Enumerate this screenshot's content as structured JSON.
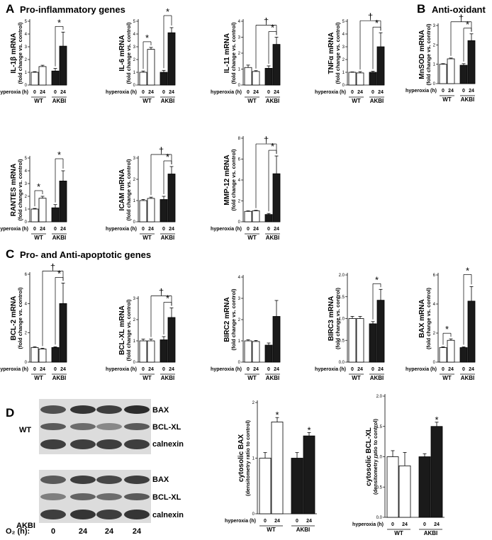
{
  "panels": {
    "A": {
      "letter": "A",
      "title": "Pro-inflammatory genes"
    },
    "B": {
      "letter": "B",
      "title": "Anti-oxidant"
    },
    "C": {
      "letter": "C",
      "title": "Pro- and Anti-apoptotic genes"
    },
    "D": {
      "letter": "D"
    }
  },
  "axis_text": {
    "condition_label": "hyperoxia (h)",
    "fold_label": "(fold change vs. control)",
    "densito_label": "(densitometry ratio to control)",
    "groups": [
      "WT",
      "AKBI"
    ],
    "hours": [
      "0",
      "24",
      "0",
      "24"
    ],
    "bar_colors": [
      "#ffffff",
      "#ffffff",
      "#1a1a1a",
      "#1a1a1a"
    ]
  },
  "western_blot": {
    "wt_label": "WT",
    "akbi_label": "AKBI",
    "bands": [
      "BAX",
      "BCL-XL",
      "calnexin"
    ],
    "o2_label": "O₂ (h):",
    "lanes": [
      "0",
      "24",
      "24",
      "24"
    ]
  },
  "chart_data": [
    {
      "type": "bar",
      "ylabel": "IL-1β mRNA",
      "categories": [
        "WT 0",
        "WT 24",
        "AKBI 0",
        "AKBI 24"
      ],
      "values": [
        1.0,
        1.45,
        1.1,
        3.05
      ],
      "errors": [
        0.05,
        0.1,
        0.2,
        1.1
      ],
      "ylim": [
        0,
        5
      ],
      "yticks": [
        "0",
        "1",
        "2",
        "3",
        "4",
        "5"
      ],
      "annotations": [
        {
          "symbol": "*",
          "between": [
            "AKBI 0",
            "AKBI 24"
          ]
        }
      ]
    },
    {
      "type": "bar",
      "ylabel": "IL-6 mRNA",
      "categories": [
        "WT 0",
        "WT 24",
        "AKBI 0",
        "AKBI 24"
      ],
      "values": [
        1.0,
        2.8,
        1.0,
        4.1
      ],
      "errors": [
        0.1,
        0.15,
        0.15,
        0.4
      ],
      "ylim": [
        0,
        5
      ],
      "yticks": [
        "0",
        "1",
        "2",
        "3",
        "4",
        "5"
      ],
      "annotations": [
        {
          "symbol": "*",
          "between": [
            "WT 0",
            "WT 24"
          ]
        },
        {
          "symbol": "*",
          "between": [
            "AKBI 0",
            "AKBI 24"
          ]
        }
      ]
    },
    {
      "type": "bar",
      "ylabel": "IL-11 mRNA",
      "categories": [
        "WT 0",
        "WT 24",
        "AKBI 0",
        "AKBI 24"
      ],
      "values": [
        1.1,
        0.85,
        1.05,
        2.55
      ],
      "errors": [
        0.15,
        0.05,
        0.15,
        0.45
      ],
      "ylim": [
        0,
        4
      ],
      "yticks": [
        "0",
        "1",
        "2",
        "3",
        "4"
      ],
      "annotations": [
        {
          "symbol": "*",
          "between": [
            "AKBI 0",
            "AKBI 24"
          ]
        },
        {
          "symbol": "†",
          "between": [
            "WT 24",
            "AKBI 24"
          ]
        }
      ]
    },
    {
      "type": "bar",
      "ylabel": "TNFα mRNA",
      "categories": [
        "WT 0",
        "WT 24",
        "AKBI 0",
        "AKBI 24"
      ],
      "values": [
        1.0,
        0.95,
        1.0,
        3.0
      ],
      "errors": [
        0.03,
        0.1,
        0.08,
        1.1
      ],
      "ylim": [
        0,
        5
      ],
      "yticks": [
        "0",
        "1",
        "2",
        "3",
        "4",
        "5"
      ],
      "annotations": [
        {
          "symbol": "*",
          "between": [
            "AKBI 0",
            "AKBI 24"
          ]
        },
        {
          "symbol": "†",
          "between": [
            "WT 24",
            "AKBI 24"
          ]
        }
      ]
    },
    {
      "type": "bar",
      "ylabel": "MnSOD mRNA",
      "categories": [
        "WT 0",
        "WT 24",
        "AKBI 0",
        "AKBI 24"
      ],
      "values": [
        1.0,
        1.28,
        0.95,
        2.22
      ],
      "errors": [
        0.03,
        0.04,
        0.08,
        0.35
      ],
      "ylim": [
        0,
        3
      ],
      "yticks": [
        "0",
        "1",
        "2",
        "3"
      ],
      "annotations": [
        {
          "symbol": "*",
          "between": [
            "AKBI 0",
            "AKBI 24"
          ]
        },
        {
          "symbol": "†",
          "between": [
            "WT 24",
            "AKBI 24"
          ]
        }
      ]
    },
    {
      "type": "bar",
      "ylabel": "RANTES mRNA",
      "categories": [
        "WT 0",
        "WT 24",
        "AKBI 0",
        "AKBI 24"
      ],
      "values": [
        1.0,
        1.85,
        1.1,
        3.2
      ],
      "errors": [
        0.05,
        0.15,
        0.25,
        0.8
      ],
      "ylim": [
        0,
        5
      ],
      "yticks": [
        "0",
        "1",
        "2",
        "3",
        "4",
        "5"
      ],
      "annotations": [
        {
          "symbol": "*",
          "between": [
            "WT 0",
            "WT 24"
          ]
        },
        {
          "symbol": "*",
          "between": [
            "AKBI 0",
            "AKBI 24"
          ]
        }
      ]
    },
    {
      "type": "bar",
      "ylabel": "ICAM mRNA",
      "categories": [
        "WT 0",
        "WT 24",
        "AKBI 0",
        "AKBI 24"
      ],
      "values": [
        1.0,
        1.1,
        1.05,
        2.25
      ],
      "errors": [
        0.05,
        0.06,
        0.15,
        0.35
      ],
      "ylim": [
        0,
        3
      ],
      "yticks": [
        "0",
        "1",
        "2",
        "3"
      ],
      "annotations": [
        {
          "symbol": "*",
          "between": [
            "AKBI 0",
            "AKBI 24"
          ]
        },
        {
          "symbol": "†",
          "between": [
            "WT 24",
            "AKBI 24"
          ]
        }
      ]
    },
    {
      "type": "bar",
      "ylabel": "MMP-12 mRNA",
      "categories": [
        "WT 0",
        "WT 24",
        "AKBI 0",
        "AKBI 24"
      ],
      "values": [
        1.0,
        1.05,
        0.7,
        4.6
      ],
      "errors": [
        0.05,
        0.05,
        0.1,
        1.7
      ],
      "ylim": [
        0,
        8
      ],
      "yticks": [
        "0",
        "2",
        "4",
        "6",
        "8"
      ],
      "annotations": [
        {
          "symbol": "*",
          "between": [
            "AKBI 0",
            "AKBI 24"
          ]
        },
        {
          "symbol": "†",
          "between": [
            "WT 24",
            "AKBI 24"
          ]
        }
      ]
    },
    {
      "type": "bar",
      "ylabel": "BCL-2 mRNA",
      "categories": [
        "WT 0",
        "WT 24",
        "AKBI 0",
        "AKBI 24"
      ],
      "values": [
        1.0,
        0.9,
        1.0,
        4.0
      ],
      "errors": [
        0.05,
        0.05,
        0.05,
        1.4
      ],
      "ylim": [
        0,
        6
      ],
      "yticks": [
        "0",
        "2",
        "4",
        "6"
      ],
      "annotations": [
        {
          "symbol": "*",
          "between": [
            "AKBI 0",
            "AKBI 24"
          ]
        },
        {
          "symbol": "†",
          "between": [
            "WT 24",
            "AKBI 24"
          ]
        }
      ]
    },
    {
      "type": "bar",
      "ylabel": "BCL-XL mRNA",
      "categories": [
        "WT 0",
        "WT 24",
        "AKBI 0",
        "AKBI 24"
      ],
      "values": [
        1.0,
        1.0,
        1.05,
        2.1
      ],
      "errors": [
        0.08,
        0.08,
        0.15,
        0.45
      ],
      "ylim": [
        0,
        3
      ],
      "yticks": [
        "0",
        "1",
        "2",
        "3"
      ],
      "annotations": [
        {
          "symbol": "*",
          "between": [
            "AKBI 0",
            "AKBI 24"
          ]
        },
        {
          "symbol": "†",
          "between": [
            "WT 24",
            "AKBI 24"
          ]
        }
      ]
    },
    {
      "type": "bar",
      "ylabel": "BIRC2 mRNA",
      "categories": [
        "WT 0",
        "WT 24",
        "AKBI 0",
        "AKBI 24"
      ],
      "values": [
        1.0,
        0.97,
        0.8,
        2.15
      ],
      "errors": [
        0.05,
        0.05,
        0.1,
        0.75
      ],
      "ylim": [
        0,
        4
      ],
      "yticks": [
        "0",
        "1",
        "2",
        "3",
        "4"
      ],
      "annotations": []
    },
    {
      "type": "bar",
      "ylabel": "BIRC3 mRNA",
      "categories": [
        "WT 0",
        "WT 24",
        "AKBI 0",
        "AKBI 24"
      ],
      "values": [
        1.0,
        1.0,
        0.88,
        1.42
      ],
      "errors": [
        0.05,
        0.05,
        0.05,
        0.25
      ],
      "ylim": [
        0,
        2
      ],
      "yticks": [
        "0.0",
        "0.5",
        "1.0",
        "1.5",
        "2.0"
      ],
      "annotations": [
        {
          "symbol": "*",
          "between": [
            "AKBI 0",
            "AKBI 24"
          ]
        }
      ]
    },
    {
      "type": "bar",
      "ylabel": "BAX mRNA",
      "categories": [
        "WT 0",
        "WT 24",
        "AKBI 0",
        "AKBI 24"
      ],
      "values": [
        1.0,
        1.5,
        1.0,
        4.2
      ],
      "errors": [
        0.05,
        0.1,
        0.05,
        1.0
      ],
      "ylim": [
        0,
        6
      ],
      "yticks": [
        "0",
        "2",
        "4",
        "6"
      ],
      "annotations": [
        {
          "symbol": "*",
          "between": [
            "WT 0",
            "WT 24"
          ]
        },
        {
          "symbol": "*",
          "between": [
            "AKBI 0",
            "AKBI 24"
          ]
        }
      ]
    },
    {
      "type": "bar",
      "ylabel": "cytosolic BAX",
      "categories": [
        "WT 0",
        "WT 24",
        "AKBI 0",
        "AKBI 24"
      ],
      "values": [
        1.0,
        1.65,
        1.0,
        1.4
      ],
      "errors": [
        0.1,
        0.08,
        0.1,
        0.06
      ],
      "ylim": [
        0,
        2
      ],
      "yticks": [
        "0",
        "1",
        "2"
      ],
      "annotations": [
        {
          "symbol": "*",
          "above": "WT 24"
        },
        {
          "symbol": "*",
          "above": "AKBI 24"
        }
      ]
    },
    {
      "type": "bar",
      "ylabel": "cytosolic BCL-XL",
      "categories": [
        "WT 0",
        "WT 24",
        "AKBI 0",
        "AKBI 24"
      ],
      "values": [
        1.0,
        0.85,
        1.0,
        1.5
      ],
      "errors": [
        0.1,
        0.22,
        0.05,
        0.07
      ],
      "ylim": [
        0,
        2
      ],
      "yticks": [
        "0.0",
        "0.5",
        "1.0",
        "1.5",
        "2.0"
      ],
      "annotations": [
        {
          "symbol": "*",
          "above": "AKBI 24"
        }
      ]
    }
  ]
}
